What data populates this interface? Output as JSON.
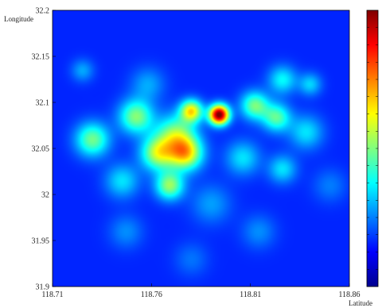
{
  "chart_data": {
    "type": "heatmap",
    "title": "",
    "xlabel": "Latitude",
    "ylabel": "Longitude",
    "xlim": [
      118.71,
      118.86
    ],
    "ylim": [
      31.9,
      32.2
    ],
    "x_ticks": [
      "118.71",
      "118.76",
      "118.81",
      "118.86"
    ],
    "y_ticks": [
      "31.9",
      "31.95",
      "32",
      "32.05",
      "32.1",
      "32.15",
      "32.2"
    ],
    "colormap": "jet",
    "colorbar": true,
    "background_value": 0.0,
    "hotspots": [
      {
        "x": 118.794,
        "y": 32.087,
        "intensity": 1.0,
        "spread": 0.0035
      },
      {
        "x": 118.78,
        "y": 32.091,
        "intensity": 0.55,
        "spread": 0.004
      },
      {
        "x": 118.777,
        "y": 32.045,
        "intensity": 0.55,
        "spread": 0.006
      },
      {
        "x": 118.763,
        "y": 32.045,
        "intensity": 0.45,
        "spread": 0.006
      },
      {
        "x": 118.772,
        "y": 32.066,
        "intensity": 0.38,
        "spread": 0.007
      },
      {
        "x": 118.752,
        "y": 32.085,
        "intensity": 0.4,
        "spread": 0.006
      },
      {
        "x": 118.73,
        "y": 32.06,
        "intensity": 0.38,
        "spread": 0.006
      },
      {
        "x": 118.769,
        "y": 32.01,
        "intensity": 0.42,
        "spread": 0.005
      },
      {
        "x": 118.812,
        "y": 32.097,
        "intensity": 0.38,
        "spread": 0.005
      },
      {
        "x": 118.823,
        "y": 32.084,
        "intensity": 0.35,
        "spread": 0.005
      },
      {
        "x": 118.826,
        "y": 32.125,
        "intensity": 0.25,
        "spread": 0.005
      },
      {
        "x": 118.84,
        "y": 32.12,
        "intensity": 0.2,
        "spread": 0.004
      },
      {
        "x": 118.838,
        "y": 32.068,
        "intensity": 0.22,
        "spread": 0.006
      },
      {
        "x": 118.826,
        "y": 32.028,
        "intensity": 0.22,
        "spread": 0.005
      },
      {
        "x": 118.806,
        "y": 32.04,
        "intensity": 0.22,
        "spread": 0.006
      },
      {
        "x": 118.745,
        "y": 32.015,
        "intensity": 0.22,
        "spread": 0.006
      },
      {
        "x": 118.758,
        "y": 32.12,
        "intensity": 0.15,
        "spread": 0.006
      },
      {
        "x": 118.725,
        "y": 32.135,
        "intensity": 0.15,
        "spread": 0.004
      },
      {
        "x": 118.747,
        "y": 31.96,
        "intensity": 0.12,
        "spread": 0.006
      },
      {
        "x": 118.814,
        "y": 31.96,
        "intensity": 0.12,
        "spread": 0.006
      },
      {
        "x": 118.79,
        "y": 31.99,
        "intensity": 0.14,
        "spread": 0.007
      },
      {
        "x": 118.78,
        "y": 31.93,
        "intensity": 0.09,
        "spread": 0.006
      },
      {
        "x": 118.85,
        "y": 32.01,
        "intensity": 0.1,
        "spread": 0.006
      }
    ]
  }
}
